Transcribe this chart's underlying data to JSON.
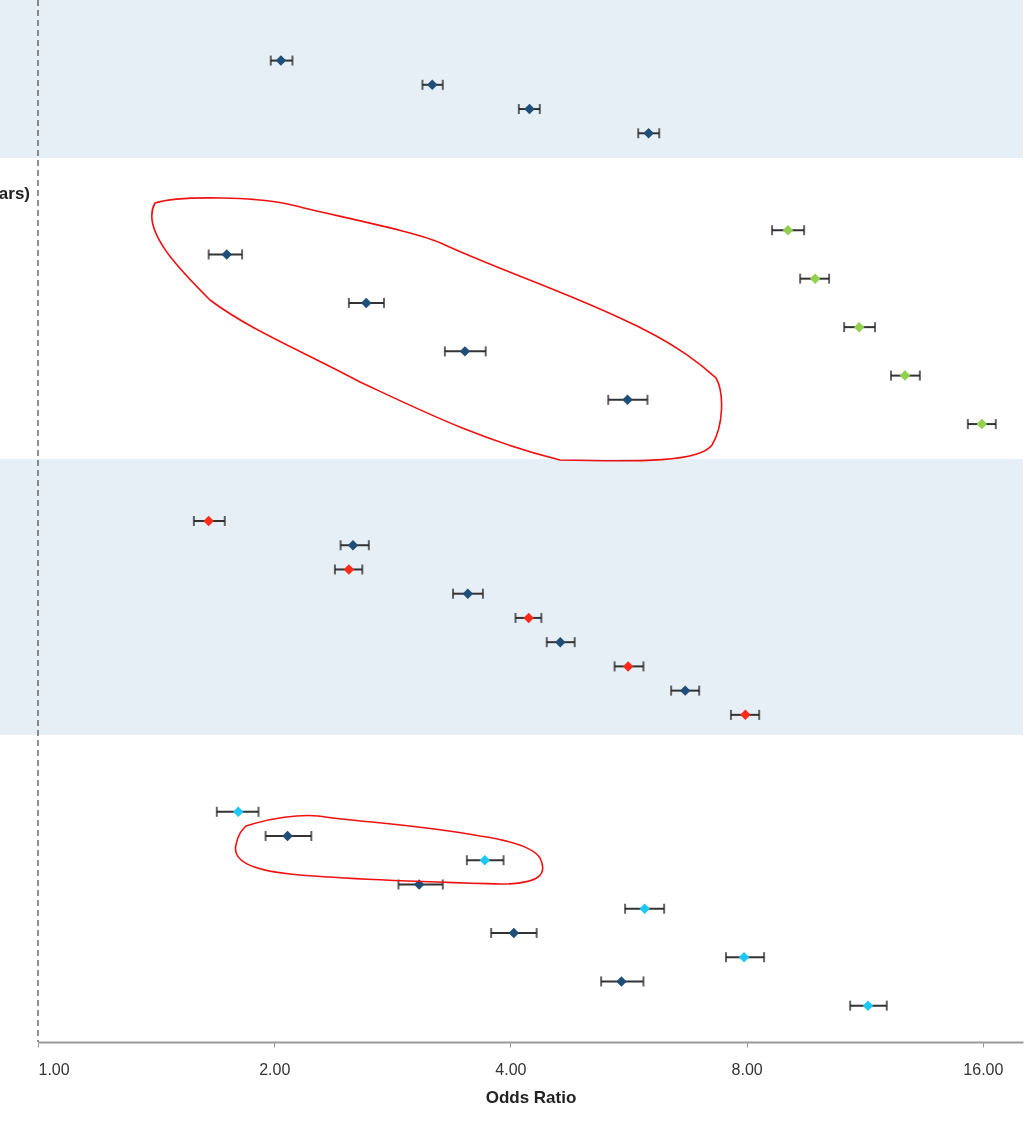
{
  "chart_data": {
    "type": "scatter",
    "orientation": "horizontal",
    "xlabel": "Odds Ratio",
    "marker": "diamond",
    "tick_labels": "x",
    "annotations": [
      "ars)"
    ],
    "categories": [
      null,
      null,
      null,
      null,
      null,
      null,
      null,
      null,
      null,
      null,
      null,
      null,
      null,
      null,
      null,
      null,
      null,
      null,
      null,
      null,
      null,
      null,
      null,
      null,
      null,
      null,
      null,
      null,
      null,
      null,
      null,
      null,
      null,
      null,
      null,
      null,
      null,
      null,
      null,
      null,
      null,
      null,
      null
    ],
    "xlim": [
      1,
      18
    ],
    "log": "x",
    "xticks": [
      {
        "value": 1,
        "label": "1.00"
      },
      {
        "value": 2,
        "label": "2.00"
      },
      {
        "value": 4,
        "label": "4.00"
      },
      {
        "value": 8,
        "label": "8.00"
      },
      {
        "value": 16,
        "label": "16.00"
      }
    ],
    "ref_lines": [
      {
        "axis": "x",
        "value": 1,
        "line_style": "dashed",
        "color": "#555555"
      }
    ],
    "series": [
      {
        "color": "#1f4e79",
        "values": [
          null,
          null,
          2.04,
          3.18,
          4.23,
          6,
          null,
          null,
          null,
          null,
          1.74,
          null,
          2.62,
          null,
          3.5,
          null,
          5.64,
          null,
          null,
          null,
          null,
          null,
          2.52,
          null,
          3.53,
          null,
          4.63,
          null,
          6.68,
          null,
          null,
          null,
          null,
          null,
          2.08,
          null,
          3.06,
          null,
          4.04,
          null,
          5.54,
          null,
          null
        ],
        "errors": [
          null,
          null,
          [
            1.98,
            2.11
          ],
          [
            3.09,
            3.28
          ],
          [
            4.1,
            4.36
          ],
          [
            5.82,
            6.19
          ],
          null,
          null,
          null,
          null,
          [
            1.65,
            1.82
          ],
          null,
          [
            2.49,
            2.76
          ],
          null,
          [
            3.3,
            3.72
          ],
          null,
          [
            5.33,
            5.98
          ],
          null,
          null,
          null,
          null,
          null,
          [
            2.43,
            2.64
          ],
          null,
          [
            3.38,
            3.69
          ],
          null,
          [
            4.45,
            4.83
          ],
          null,
          [
            6.41,
            6.96
          ],
          null,
          null,
          null,
          null,
          null,
          [
            1.95,
            2.23
          ],
          null,
          [
            2.88,
            3.28
          ],
          null,
          [
            3.78,
            4.32
          ],
          null,
          [
            5.22,
            5.91
          ],
          null,
          null
        ]
      },
      {
        "color": "#92d050",
        "values": [
          null,
          null,
          null,
          null,
          null,
          null,
          null,
          null,
          null,
          9.03,
          null,
          9.78,
          null,
          11.13,
          null,
          12.73,
          null,
          15.95,
          null,
          null,
          null,
          null,
          null,
          null,
          null,
          null,
          null,
          null,
          null,
          null,
          null,
          null,
          null,
          null,
          null,
          null,
          null,
          null,
          null,
          null,
          null,
          null,
          null
        ],
        "errors": [
          null,
          null,
          null,
          null,
          null,
          null,
          null,
          null,
          null,
          [
            8.62,
            9.47
          ],
          null,
          [
            9.36,
            10.19
          ],
          null,
          [
            10.65,
            11.66
          ],
          null,
          [
            12.22,
            13.3
          ],
          null,
          [
            15.31,
            16.62
          ],
          null,
          null,
          null,
          null,
          null,
          null,
          null,
          null,
          null,
          null,
          null,
          null,
          null,
          null,
          null,
          null,
          null,
          null,
          null,
          null,
          null,
          null,
          null,
          null,
          null
        ]
      },
      {
        "color": "#fe2b1c",
        "values": [
          null,
          null,
          null,
          null,
          null,
          null,
          null,
          null,
          null,
          null,
          null,
          null,
          null,
          null,
          null,
          null,
          null,
          null,
          null,
          null,
          null,
          1.65,
          null,
          2.49,
          null,
          4.22,
          null,
          5.65,
          null,
          7.97,
          null,
          null,
          null,
          null,
          null,
          null,
          null,
          null,
          null,
          null,
          null,
          null,
          null
        ],
        "errors": [
          null,
          null,
          null,
          null,
          null,
          null,
          null,
          null,
          null,
          null,
          null,
          null,
          null,
          null,
          null,
          null,
          null,
          null,
          null,
          null,
          null,
          [
            1.58,
            1.73
          ],
          null,
          [
            2.39,
            2.59
          ],
          null,
          [
            4.06,
            4.38
          ],
          null,
          [
            5.43,
            5.91
          ],
          null,
          [
            7.64,
            8.3
          ],
          null,
          null,
          null,
          null,
          null,
          null,
          null,
          null,
          null,
          null,
          null,
          null,
          null
        ]
      },
      {
        "color": "#1ec8f5",
        "values": [
          null,
          null,
          null,
          null,
          null,
          null,
          null,
          null,
          null,
          null,
          null,
          null,
          null,
          null,
          null,
          null,
          null,
          null,
          null,
          null,
          null,
          null,
          null,
          null,
          null,
          null,
          null,
          null,
          null,
          null,
          null,
          null,
          null,
          1.8,
          null,
          3.71,
          null,
          5.93,
          null,
          7.94,
          null,
          11.42,
          null
        ],
        "errors": [
          null,
          null,
          null,
          null,
          null,
          null,
          null,
          null,
          null,
          null,
          null,
          null,
          null,
          null,
          null,
          null,
          null,
          null,
          null,
          null,
          null,
          null,
          null,
          null,
          null,
          null,
          null,
          null,
          null,
          null,
          null,
          null,
          null,
          [
            1.69,
            1.91
          ],
          null,
          [
            3.52,
            3.92
          ],
          null,
          [
            5.6,
            6.28
          ],
          null,
          [
            7.53,
            8.42
          ],
          null,
          [
            10.84,
            12.07
          ],
          null
        ]
      }
    ]
  }
}
